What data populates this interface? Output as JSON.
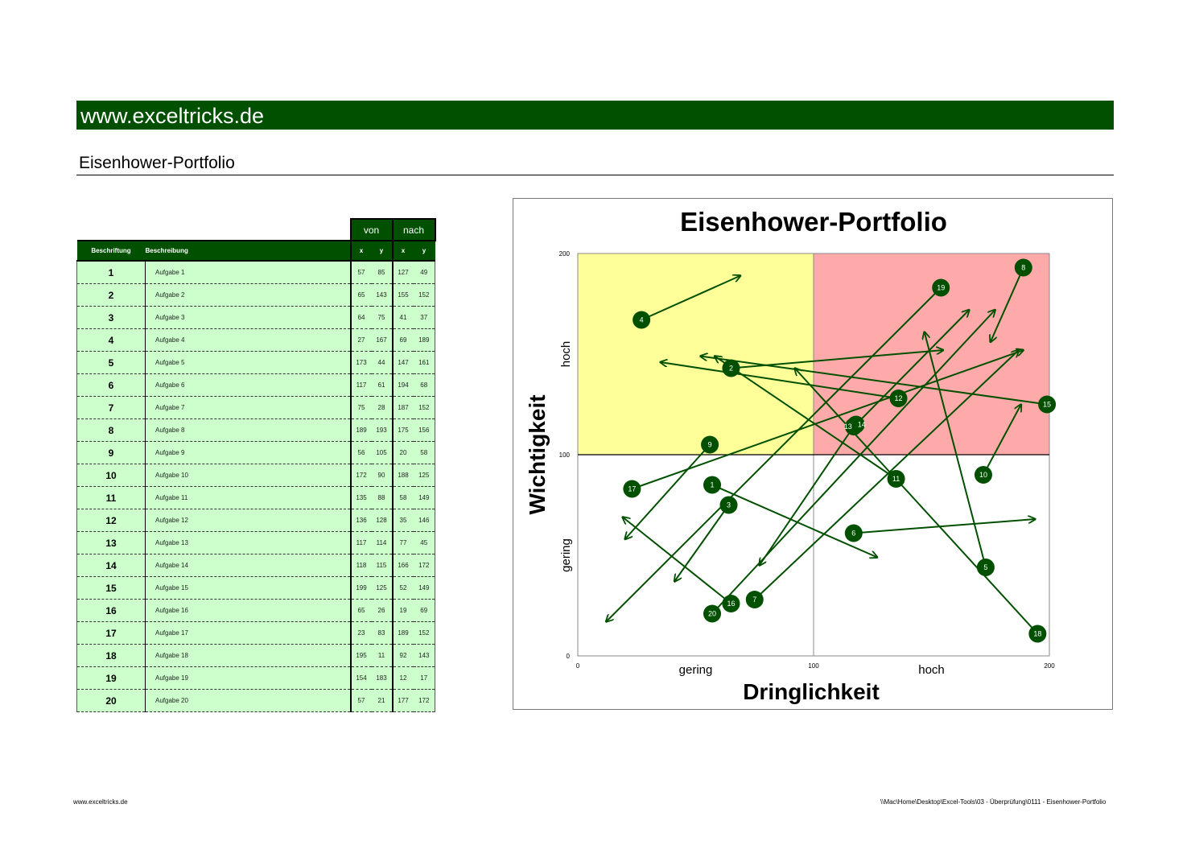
{
  "banner": "www.exceltricks.de",
  "subtitle": "Eisenhower-Portfolio",
  "table": {
    "group_headers": [
      "von",
      "nach"
    ],
    "headers": [
      "Beschriftung",
      "Beschreibung",
      "x",
      "y",
      "x",
      "y"
    ],
    "rows": [
      [
        "1",
        "Aufgabe 1",
        57,
        85,
        127,
        49
      ],
      [
        "2",
        "Aufgabe 2",
        65,
        143,
        155,
        152
      ],
      [
        "3",
        "Aufgabe 3",
        64,
        75,
        41,
        37
      ],
      [
        "4",
        "Aufgabe 4",
        27,
        167,
        69,
        189
      ],
      [
        "5",
        "Aufgabe 5",
        173,
        44,
        147,
        161
      ],
      [
        "6",
        "Aufgabe 6",
        117,
        61,
        194,
        68
      ],
      [
        "7",
        "Aufgabe 7",
        75,
        28,
        187,
        152
      ],
      [
        "8",
        "Aufgabe 8",
        189,
        193,
        175,
        156
      ],
      [
        "9",
        "Aufgabe 9",
        56,
        105,
        20,
        58
      ],
      [
        "10",
        "Aufgabe 10",
        172,
        90,
        188,
        125
      ],
      [
        "11",
        "Aufgabe 11",
        135,
        88,
        58,
        149
      ],
      [
        "12",
        "Aufgabe 12",
        136,
        128,
        35,
        146
      ],
      [
        "13",
        "Aufgabe 13",
        117,
        114,
        77,
        45
      ],
      [
        "14",
        "Aufgabe 14",
        118,
        115,
        166,
        172
      ],
      [
        "15",
        "Aufgabe 15",
        199,
        125,
        52,
        149
      ],
      [
        "16",
        "Aufgabe 16",
        65,
        26,
        19,
        69
      ],
      [
        "17",
        "Aufgabe 17",
        23,
        83,
        189,
        152
      ],
      [
        "18",
        "Aufgabe 18",
        195,
        11,
        92,
        143
      ],
      [
        "19",
        "Aufgabe 19",
        154,
        183,
        12,
        17
      ],
      [
        "20",
        "Aufgabe 20",
        57,
        21,
        177,
        172
      ]
    ]
  },
  "chart_data": {
    "type": "scatter",
    "title": "Eisenhower-Portfolio",
    "xlabel": "Dringlichkeit",
    "ylabel": "Wichtigkeit",
    "xlim": [
      0,
      200
    ],
    "ylim": [
      0,
      200
    ],
    "xticks": [
      "0",
      "100",
      "200"
    ],
    "yticks": [
      "0",
      "100",
      "200"
    ],
    "x_category_labels": [
      "gering",
      "hoch"
    ],
    "y_category_labels": [
      "gering",
      "hoch"
    ],
    "quadrant_colors": {
      "top_left": "#ffff99",
      "top_right": "#ffaaaa",
      "bottom_left": "#ffffff",
      "bottom_right": "#ffffff"
    },
    "marker_color": "#005000",
    "arrows": "from (von x,y) to (nach x,y) per table row"
  },
  "footer": {
    "left": "www.exceltricks.de",
    "right": "\\\\Mac\\Home\\Desktop\\Excel-Tools\\03 - Überprüfung\\0111 - Eisenhower-Portfolio"
  }
}
